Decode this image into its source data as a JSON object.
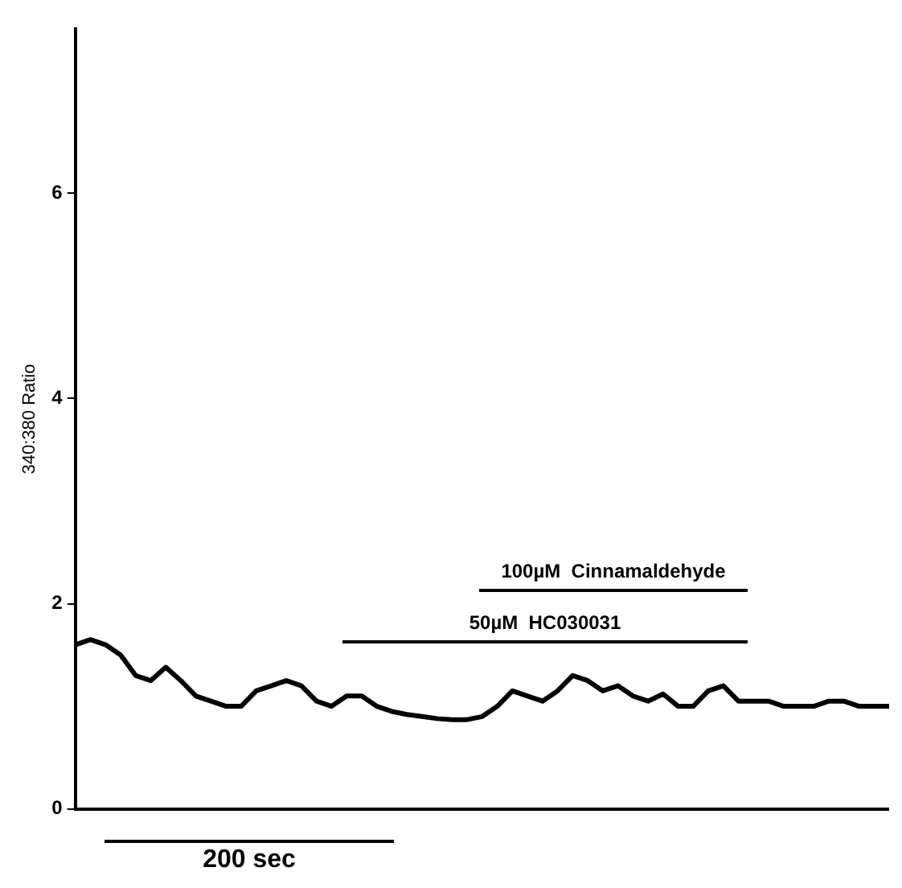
{
  "chart_data": {
    "type": "line",
    "ylabel": "340:380 Ratio",
    "categories": [
      null,
      null,
      null,
      null,
      null,
      null,
      null,
      null,
      null,
      null,
      null,
      null,
      null,
      null,
      null,
      null,
      null,
      null,
      null,
      null,
      null,
      null,
      null,
      null,
      null,
      null,
      null,
      null,
      null,
      null,
      null,
      null,
      null,
      null,
      null,
      null,
      null,
      null,
      null,
      null,
      null,
      null,
      null,
      null,
      null,
      null,
      null,
      null,
      null,
      null,
      null,
      null,
      null,
      null,
      null
    ],
    "series": [
      {
        "color": "#000000",
        "values": [
          1.6,
          1.65,
          1.6,
          1.5,
          1.3,
          1.25,
          1.38,
          1.25,
          1.1,
          1.05,
          1.0,
          1.0,
          1.15,
          1.2,
          1.25,
          1.2,
          1.05,
          1.0,
          1.1,
          1.1,
          1.0,
          0.95,
          0.92,
          0.9,
          0.88,
          0.87,
          0.87,
          0.9,
          1.0,
          1.15,
          1.1,
          1.05,
          1.15,
          1.3,
          1.25,
          1.15,
          1.2,
          1.1,
          1.05,
          1.12,
          1.0,
          1.0,
          1.15,
          1.2,
          1.05,
          1.05,
          1.05,
          1.0,
          1.0,
          1.0,
          1.05,
          1.05,
          1.0,
          1.0,
          1.0
        ]
      }
    ],
    "ylim": [
      0,
      7.6
    ],
    "yticks": [
      0,
      2,
      4,
      6
    ],
    "tick_labels": "y",
    "grid": false,
    "legend": false,
    "marker": "none",
    "line_style": "solid",
    "annotations": [
      "100µM  Cinnamaldehyde",
      "50µM  HC030031",
      "200 sec"
    ]
  }
}
